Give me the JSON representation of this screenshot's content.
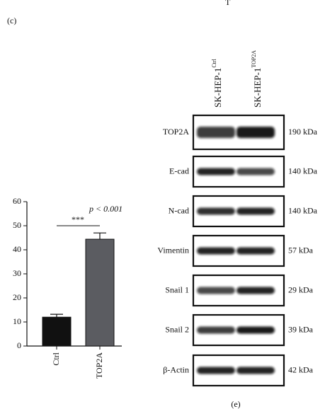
{
  "header": {
    "fragment": "T"
  },
  "panel_c": {
    "label": "(c)"
  },
  "chart_data": {
    "type": "bar",
    "categories": [
      "Ctrl",
      "TOP2A"
    ],
    "values": [
      12,
      44.4
    ],
    "errors": [
      1.2,
      2.6
    ],
    "colors": [
      "#111111",
      "#5b5c61"
    ],
    "ylim": [
      0,
      60
    ],
    "yticks": [
      0,
      10,
      20,
      30,
      40,
      50,
      60
    ],
    "annotations": {
      "stars": "***",
      "p": "p < 0.001"
    }
  },
  "blot": {
    "label": "(e)",
    "lanes": [
      {
        "name": "SK-HEP-1",
        "sup": "Ctrl"
      },
      {
        "name": "SK-HEP-1",
        "sup": "TOP2A"
      }
    ],
    "rows": [
      {
        "label": "TOP2A",
        "kda": "190 kDa"
      },
      {
        "label": "E-cad",
        "kda": "140 kDa"
      },
      {
        "label": "N-cad",
        "kda": "140 kDa"
      },
      {
        "label": "Vimentin",
        "kda": "57 kDa"
      },
      {
        "label": "Snail 1",
        "kda": "29 kDa"
      },
      {
        "label": "Snail 2",
        "kda": "39 kDa"
      },
      {
        "label": "β-Actin",
        "kda": "42 kDa"
      }
    ]
  }
}
